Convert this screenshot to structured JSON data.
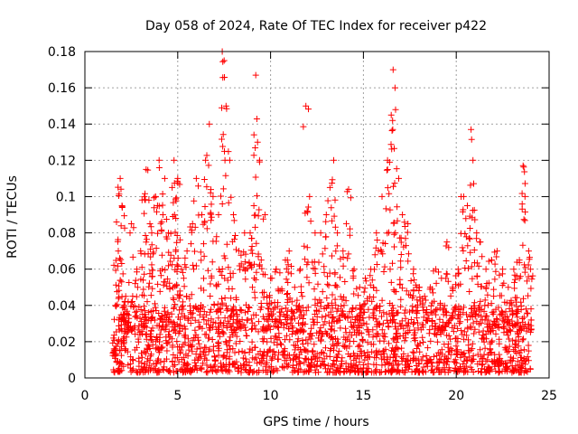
{
  "chart_data": {
    "type": "scatter",
    "title": "Day 058 of 2024, Rate Of TEC Index for receiver p422",
    "xlabel": "GPS time / hours",
    "ylabel": "ROTI / TECUs",
    "xlim": [
      0,
      25
    ],
    "ylim": [
      0,
      0.18
    ],
    "x_ticks": [
      0,
      5,
      10,
      15,
      20,
      25
    ],
    "x_tick_labels": [
      "0",
      "5",
      "10",
      "15",
      "20",
      "25"
    ],
    "y_ticks": [
      0,
      0.02,
      0.04,
      0.06,
      0.08,
      0.1,
      0.12,
      0.14,
      0.16,
      0.18
    ],
    "y_tick_labels": [
      "0",
      "0.02",
      "0.04",
      "0.06",
      "0.08",
      "0.1",
      "0.12",
      "0.14",
      "0.16",
      "0.18"
    ],
    "grid": true,
    "marker": "+",
    "marker_color": "#ff0000",
    "x_range_of_data": [
      1.5,
      24.0
    ],
    "series": [
      {
        "name": "ROTI",
        "color": "#ff0000",
        "x": [
          1.6,
          1.7,
          1.8,
          1.9,
          2.0,
          2.1,
          2.2,
          2.5,
          2.8,
          3.0,
          3.2,
          3.3,
          3.5,
          3.6,
          3.8,
          4.0,
          4.2,
          4.3,
          4.5,
          4.7,
          4.8,
          4.9,
          5.0,
          5.2,
          5.5,
          5.8,
          6.0,
          6.3,
          6.5,
          6.7,
          6.9,
          7.2,
          7.4,
          7.5,
          7.6,
          7.8,
          8.0,
          8.3,
          8.6,
          8.9,
          9.1,
          9.2,
          9.3,
          9.5,
          9.7,
          10.0,
          10.3,
          10.5,
          10.8,
          11.0,
          11.3,
          11.6,
          11.9,
          12.1,
          12.4,
          12.7,
          13.0,
          13.2,
          13.4,
          13.6,
          13.9,
          14.2,
          14.5,
          14.8,
          15.1,
          15.4,
          15.7,
          16.0,
          16.3,
          16.5,
          16.6,
          16.7,
          16.9,
          17.1,
          17.4,
          17.7,
          18.0,
          18.3,
          18.6,
          18.9,
          19.2,
          19.5,
          19.8,
          20.1,
          20.4,
          20.6,
          20.8,
          20.9,
          21.1,
          21.3,
          21.6,
          21.9,
          22.2,
          22.5,
          22.8,
          23.1,
          23.4,
          23.6,
          23.7,
          23.9,
          24.0
        ],
        "y": [
          0.012,
          0.086,
          0.07,
          0.11,
          0.095,
          0.04,
          0.045,
          0.085,
          0.06,
          0.07,
          0.1,
          0.115,
          0.085,
          0.08,
          0.1,
          0.12,
          0.09,
          0.11,
          0.08,
          0.105,
          0.12,
          0.088,
          0.11,
          0.06,
          0.07,
          0.085,
          0.11,
          0.09,
          0.12,
          0.14,
          0.1,
          0.09,
          0.18,
          0.175,
          0.15,
          0.12,
          0.09,
          0.07,
          0.08,
          0.08,
          0.095,
          0.167,
          0.13,
          0.065,
          0.09,
          0.055,
          0.06,
          0.058,
          0.065,
          0.07,
          0.05,
          0.06,
          0.15,
          0.1,
          0.08,
          0.08,
          0.09,
          0.105,
          0.12,
          0.08,
          0.07,
          0.104,
          0.06,
          0.05,
          0.055,
          0.06,
          0.08,
          0.1,
          0.12,
          0.145,
          0.17,
          0.16,
          0.11,
          0.09,
          0.085,
          0.06,
          0.05,
          0.045,
          0.05,
          0.06,
          0.055,
          0.075,
          0.05,
          0.06,
          0.1,
          0.095,
          0.137,
          0.12,
          0.08,
          0.075,
          0.06,
          0.065,
          0.07,
          0.06,
          0.05,
          0.06,
          0.065,
          0.117,
          0.1,
          0.07,
          0.06
        ],
        "band": {
          "description": "dense baseline of points across the full time range",
          "lower": 0.003,
          "upper": 0.04
        }
      }
    ]
  }
}
